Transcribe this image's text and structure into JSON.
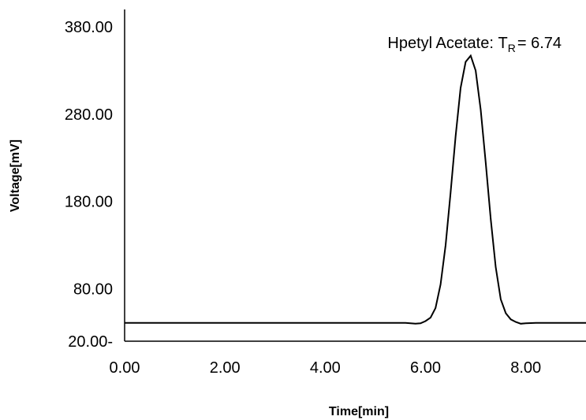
{
  "chart_data": {
    "type": "line",
    "title": "",
    "xlabel": "Time[min]",
    "ylabel": "Voltage[mV]",
    "xlim": [
      0,
      9.2
    ],
    "ylim": [
      20,
      400
    ],
    "x_ticks": [
      0,
      2,
      4,
      6,
      8
    ],
    "x_tick_labels": [
      "0.00",
      "2.00",
      "4.00",
      "6.00",
      "8.00"
    ],
    "y_ticks": [
      20,
      80,
      180,
      280,
      380
    ],
    "y_tick_labels": [
      "20.00-",
      "80.00",
      "180.00",
      "280.00",
      "380.00"
    ],
    "grid": false,
    "legend": "none",
    "line_color": "#000000",
    "annotation": {
      "compound": "Hpetyl Acetate",
      "label": "T",
      "subscript": "R",
      "value_text": "= 6.74",
      "x": 6.9,
      "y": 345
    },
    "series": [
      {
        "x": [
          0,
          1,
          2,
          3,
          4,
          5,
          5.6,
          5.8,
          5.9,
          6.0,
          6.1,
          6.2,
          6.3,
          6.4,
          6.5,
          6.6,
          6.7,
          6.8,
          6.9,
          7.0,
          7.1,
          7.2,
          7.3,
          7.4,
          7.5,
          7.6,
          7.7,
          7.8,
          7.9,
          8.0,
          8.2,
          8.5,
          9.0,
          9.2
        ],
        "y": [
          41,
          41,
          41,
          41,
          41,
          41,
          41,
          40,
          40.5,
          43,
          47,
          58,
          85,
          130,
          190,
          255,
          310,
          340,
          347,
          330,
          285,
          225,
          160,
          105,
          68,
          52,
          45,
          42,
          40,
          40.5,
          41,
          41,
          41,
          41
        ]
      }
    ]
  }
}
